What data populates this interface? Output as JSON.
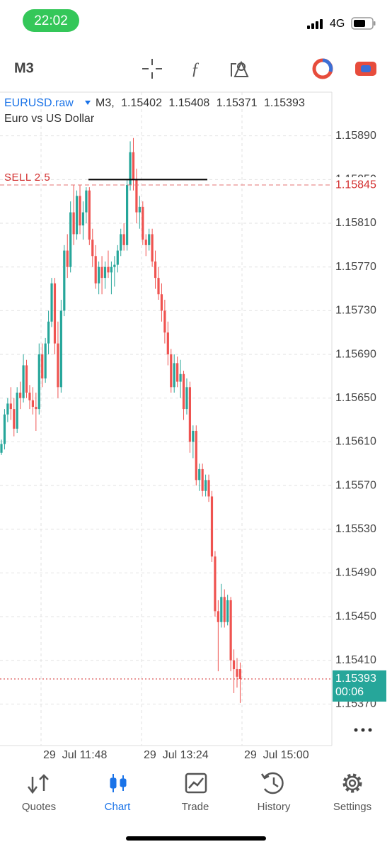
{
  "status_bar": {
    "time": "22:02",
    "network": "4G"
  },
  "toolbar": {
    "timeframe": "M3"
  },
  "tabs": [
    "Quotes",
    "Chart",
    "Trade",
    "History",
    "Settings"
  ],
  "chart_data": {
    "type": "candlestick",
    "symbol": "EURUSD.raw",
    "ohlc_prefix": "M3,",
    "description": "Euro vs US Dollar",
    "up_color": "#26a69a",
    "down_color": "#ef5350",
    "ylim": [
      1.15332,
      1.1593
    ],
    "yticks": [
      {
        "value": 1.1589,
        "label": "1.15890"
      },
      {
        "value": 1.1585,
        "label": "1.15850"
      },
      {
        "value": 1.1581,
        "label": "1.15810"
      },
      {
        "value": 1.1577,
        "label": "1.15770"
      },
      {
        "value": 1.1573,
        "label": "1.15730"
      },
      {
        "value": 1.1569,
        "label": "1.15690"
      },
      {
        "value": 1.1565,
        "label": "1.15650"
      },
      {
        "value": 1.1561,
        "label": "1.15610"
      },
      {
        "value": 1.1557,
        "label": "1.15570"
      },
      {
        "value": 1.1553,
        "label": "1.15530"
      },
      {
        "value": 1.1549,
        "label": "1.15490"
      },
      {
        "value": 1.1545,
        "label": "1.15450"
      },
      {
        "value": 1.1541,
        "label": "1.15410"
      },
      {
        "value": 1.1537,
        "label": "1.15370"
      }
    ],
    "grid": true,
    "xticks": [
      "29  Jul 11:48",
      "29  Jul 13:24",
      "29  Jul 15:00"
    ],
    "sell_order": {
      "label": "SELL 2.5",
      "value": 1.15845
    },
    "drawn_line": {
      "value": 1.1585
    },
    "current_price": {
      "value": 1.15393,
      "countdown": "00:06"
    },
    "open": [
      1.156,
      1.15608,
      1.15635,
      1.15645,
      1.1564,
      1.15622,
      1.15655,
      1.1565,
      1.1568,
      1.15655,
      1.15648,
      1.15642,
      1.1564,
      1.1569,
      1.15668,
      1.157,
      1.1572,
      1.15755,
      1.157,
      1.1566,
      1.1573,
      1.15785,
      1.1577,
      1.1582,
      1.158,
      1.15835,
      1.15808,
      1.1582,
      1.1584,
      1.15795,
      1.1578,
      1.15755,
      1.1577,
      1.1576,
      1.1577,
      1.15765,
      1.1577,
      1.15772,
      1.15785,
      1.158,
      1.1579,
      1.15845,
      1.15875,
      1.1585,
      1.1582,
      1.15825,
      1.15795,
      1.1579,
      1.158,
      1.15775,
      1.1576,
      1.15745,
      1.1573,
      1.1571,
      1.1569,
      1.1566,
      1.15682,
      1.15665,
      1.15672,
      1.1564,
      1.1566,
      1.1561,
      1.1562,
      1.15575,
      1.15585,
      1.15565,
      1.15575,
      1.1556,
      1.15505,
      1.15455,
      1.15445,
      1.15468,
      1.15445,
      1.15465,
      1.1541,
      1.15402,
      1.15402
    ],
    "high": [
      1.15612,
      1.1564,
      1.1565,
      1.1566,
      1.1565,
      1.1566,
      1.15665,
      1.1569,
      1.15685,
      1.15662,
      1.1566,
      1.15655,
      1.157,
      1.157,
      1.15705,
      1.1573,
      1.1576,
      1.1576,
      1.1572,
      1.1574,
      1.1579,
      1.158,
      1.1583,
      1.15845,
      1.1584,
      1.15845,
      1.1583,
      1.15843,
      1.15843,
      1.15805,
      1.1579,
      1.15775,
      1.1578,
      1.15775,
      1.15785,
      1.15775,
      1.1578,
      1.1579,
      1.15805,
      1.1581,
      1.1585,
      1.15885,
      1.15888,
      1.1586,
      1.15835,
      1.1583,
      1.158,
      1.15805,
      1.15805,
      1.15785,
      1.1577,
      1.15755,
      1.1574,
      1.1572,
      1.15695,
      1.1569,
      1.15688,
      1.15685,
      1.15675,
      1.15668,
      1.15665,
      1.15625,
      1.15625,
      1.1559,
      1.1559,
      1.1558,
      1.1558,
      1.15565,
      1.1551,
      1.15465,
      1.1548,
      1.15475,
      1.1547,
      1.15468,
      1.1542,
      1.15412,
      1.15408
    ],
    "low": [
      1.15598,
      1.15603,
      1.15628,
      1.1563,
      1.15615,
      1.15618,
      1.1564,
      1.15646,
      1.1565,
      1.1564,
      1.15635,
      1.1562,
      1.15635,
      1.1566,
      1.15664,
      1.1569,
      1.15715,
      1.1569,
      1.1565,
      1.15655,
      1.15725,
      1.1576,
      1.15765,
      1.1579,
      1.15795,
      1.158,
      1.15795,
      1.1581,
      1.1579,
      1.1577,
      1.1575,
      1.15745,
      1.15745,
      1.1575,
      1.1576,
      1.15745,
      1.15752,
      1.15765,
      1.1578,
      1.15785,
      1.15785,
      1.1584,
      1.1584,
      1.1581,
      1.15805,
      1.1579,
      1.1578,
      1.15785,
      1.1577,
      1.1575,
      1.1574,
      1.1572,
      1.157,
      1.1568,
      1.15655,
      1.15655,
      1.1566,
      1.1565,
      1.1563,
      1.15635,
      1.156,
      1.15595,
      1.1557,
      1.15565,
      1.1556,
      1.1556,
      1.15555,
      1.155,
      1.1545,
      1.154,
      1.1544,
      1.1544,
      1.15442,
      1.154,
      1.1538,
      1.15385,
      1.15371
    ],
    "close": [
      1.15608,
      1.15635,
      1.15645,
      1.1564,
      1.15622,
      1.15655,
      1.1565,
      1.1568,
      1.15655,
      1.15648,
      1.15642,
      1.1564,
      1.1569,
      1.15668,
      1.157,
      1.1572,
      1.15755,
      1.157,
      1.1566,
      1.1573,
      1.15785,
      1.1577,
      1.1582,
      1.158,
      1.15835,
      1.15808,
      1.1582,
      1.1584,
      1.15795,
      1.1578,
      1.15755,
      1.1577,
      1.1576,
      1.1577,
      1.15765,
      1.1577,
      1.15772,
      1.15785,
      1.158,
      1.1579,
      1.15845,
      1.15875,
      1.1585,
      1.1582,
      1.15825,
      1.15795,
      1.1579,
      1.158,
      1.15775,
      1.1576,
      1.15745,
      1.1573,
      1.1571,
      1.1569,
      1.1566,
      1.15682,
      1.15665,
      1.15672,
      1.1564,
      1.1566,
      1.1561,
      1.1562,
      1.15575,
      1.15585,
      1.15565,
      1.15575,
      1.1556,
      1.15505,
      1.15455,
      1.15445,
      1.15468,
      1.15445,
      1.15465,
      1.1541,
      1.15402,
      1.15395,
      1.15393
    ]
  }
}
